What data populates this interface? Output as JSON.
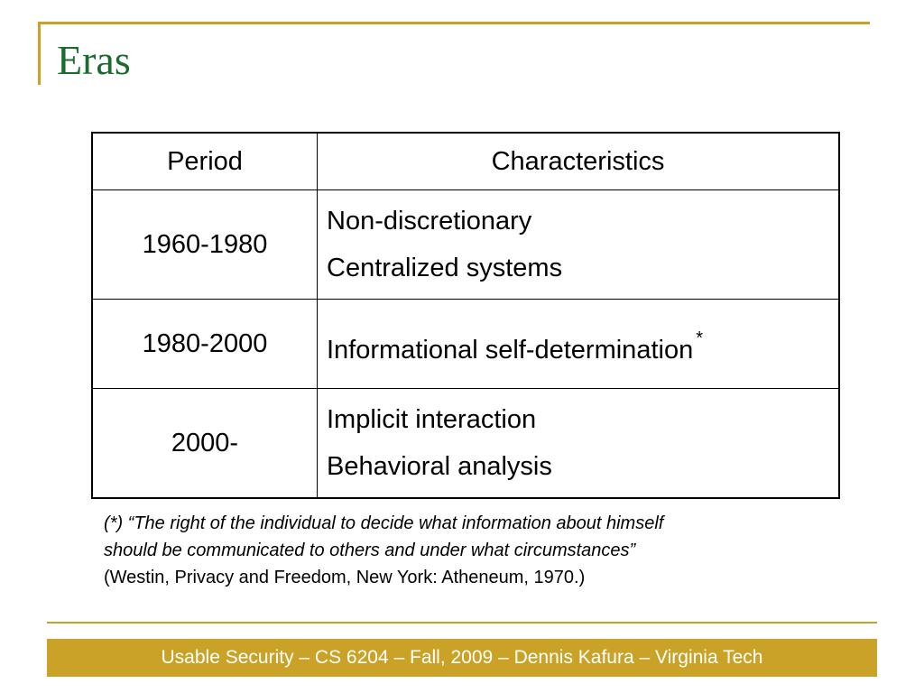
{
  "slide": {
    "title": "Eras",
    "colors": {
      "accent": "#c9a227",
      "title": "#1c6b2e",
      "footer_text": "#ffffff"
    }
  },
  "table": {
    "headers": [
      "Period",
      "Characteristics"
    ],
    "rows": [
      {
        "period": "1960-1980",
        "characteristics": [
          "Non-discretionary",
          "Centralized systems"
        ]
      },
      {
        "period": "1980-2000",
        "characteristics": [
          "Informational self-determination"
        ],
        "marker": "*"
      },
      {
        "period": "2000-",
        "characteristics": [
          "Implicit interaction",
          "Behavioral analysis"
        ]
      }
    ]
  },
  "footnote": {
    "quote_line1": "(*) “The right of the individual to decide what information about himself",
    "quote_line2": "should be communicated to others and under what circumstances”",
    "citation": "(Westin, Privacy and Freedom, New York: Atheneum, 1970.)"
  },
  "footer": {
    "text": "Usable Security – CS 6204 – Fall, 2009 – Dennis Kafura – Virginia Tech"
  }
}
